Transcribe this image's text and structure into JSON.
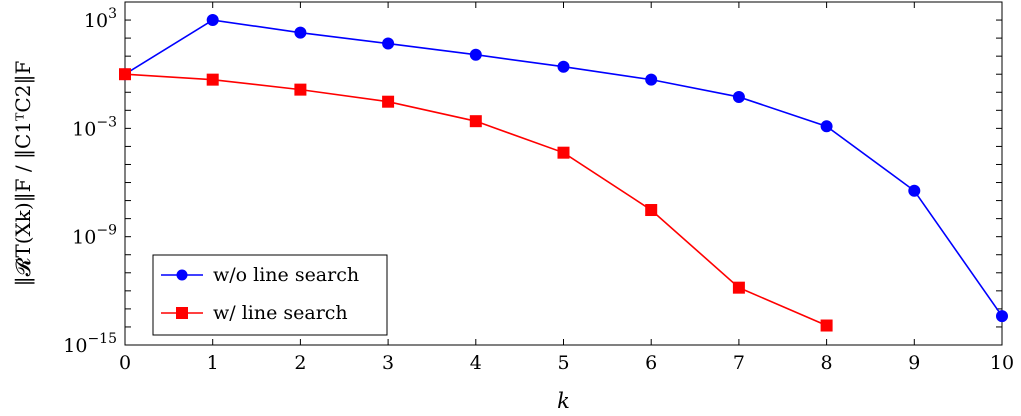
{
  "chart_data": {
    "type": "line",
    "xlabel": "k",
    "ylabel": "‖𝓡T(Xk)‖F / ‖C1ᵀC2‖F",
    "yscale": "log",
    "xlim": [
      0,
      10
    ],
    "ylim_exponent": [
      -15,
      4
    ],
    "x_ticks": [
      0,
      1,
      2,
      3,
      4,
      5,
      6,
      7,
      8,
      9,
      10
    ],
    "y_ticks": [
      {
        "exponent": -15,
        "label_base": "10",
        "label_exp": "−15"
      },
      {
        "exponent": -9,
        "label_base": "10",
        "label_exp": "−9"
      },
      {
        "exponent": -3,
        "label_base": "10",
        "label_exp": "−3"
      },
      {
        "exponent": 3,
        "label_base": "10",
        "label_exp": "3"
      }
    ],
    "grid": false,
    "legend_position": "bottom-left",
    "series": [
      {
        "name": "w/o line search",
        "color": "#0000ff",
        "marker": "circle",
        "x": [
          0,
          1,
          2,
          3,
          4,
          5,
          6,
          7,
          8,
          9,
          10
        ],
        "y": [
          1,
          1000,
          200,
          50,
          12,
          2.6,
          0.5,
          0.055,
          0.0013,
          3.5e-07,
          4e-14
        ]
      },
      {
        "name": "w/ line search",
        "color": "#ff0000",
        "marker": "square",
        "x": [
          0,
          1,
          2,
          3,
          4,
          5,
          6,
          7,
          8
        ],
        "y": [
          1,
          0.5,
          0.14,
          0.03,
          0.0025,
          4.5e-05,
          3e-08,
          1.5e-12,
          1.2e-14
        ]
      }
    ]
  }
}
